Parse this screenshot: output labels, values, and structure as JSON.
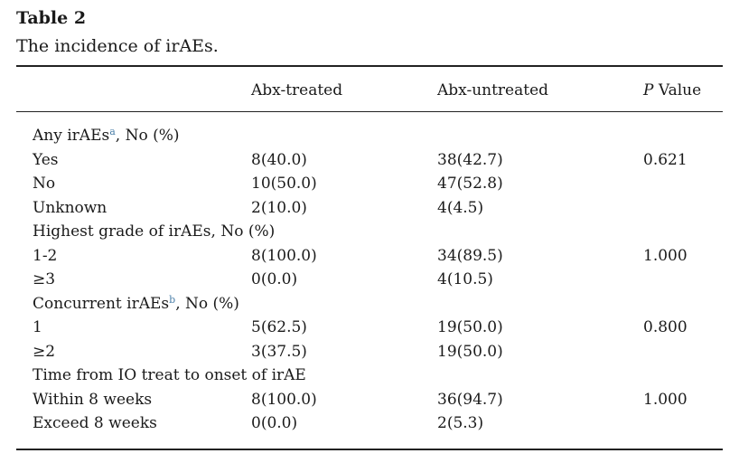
{
  "title": "Table 2",
  "subtitle": "The incidence of irAEs.",
  "header": {
    "treated": "Abx-treated",
    "untreated": "Abx-untreated",
    "p": {
      "italic": "P",
      "text": "Value"
    }
  },
  "sections": [
    {
      "heading": {
        "label": "Any irAEs",
        "note": "a",
        "suffix": ", No (%)"
      },
      "rows": [
        {
          "label": "Yes",
          "treated": "8(40.0)",
          "untreated": "38(42.7)",
          "p": "0.621"
        },
        {
          "label": "No",
          "treated": "10(50.0)",
          "untreated": "47(52.8)"
        },
        {
          "label": "Unknown",
          "treated": "2(10.0)",
          "untreated": "4(4.5)"
        }
      ]
    },
    {
      "heading": {
        "label": "Highest grade of irAEs, No (%)"
      },
      "rows": [
        {
          "label": "1-2",
          "treated": "8(100.0)",
          "untreated": "34(89.5)",
          "p": "1.000"
        },
        {
          "label": "≥3",
          "treated": "0(0.0)",
          "untreated": "4(10.5)"
        }
      ]
    },
    {
      "heading": {
        "label": "Concurrent irAEs",
        "note": "b",
        "suffix": ", No (%)"
      },
      "rows": [
        {
          "label": "1",
          "treated": "5(62.5)",
          "untreated": "19(50.0)",
          "p": "0.800"
        },
        {
          "label": "≥2",
          "treated": "3(37.5)",
          "untreated": "19(50.0)"
        }
      ]
    },
    {
      "heading": {
        "label": "Time from IO treat to onset of irAE"
      },
      "rows": [
        {
          "label": "Within 8 weeks",
          "treated": "8(100.0)",
          "untreated": "36(94.7)",
          "p": "1.000"
        },
        {
          "label": "Exceed 8 weeks",
          "treated": "0(0.0)",
          "untreated": "2(5.3)"
        }
      ]
    }
  ]
}
